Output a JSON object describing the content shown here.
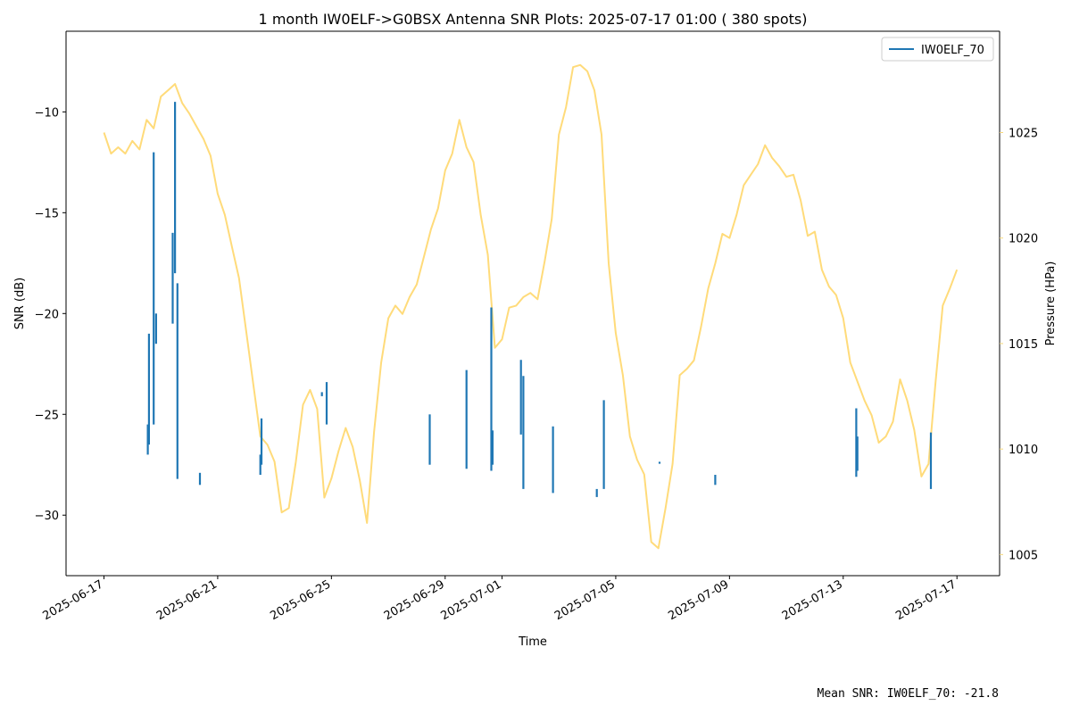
{
  "chart_data": {
    "type": "line",
    "title": "1 month IW0ELF->G0BSX Antenna SNR Plots: 2025-07-17 01:00  ( 380 spots)",
    "xlabel": "Time",
    "ylabel": "SNR (dB)",
    "y2label": "Pressure (HPa)",
    "xlim": [
      "2025-06-15T16:00",
      "2025-07-18T12:00"
    ],
    "ylim": [
      -33,
      -6
    ],
    "y2lim": [
      1004,
      1029.8
    ],
    "x_ticks": [
      "2025-06-17",
      "2025-06-21",
      "2025-06-25",
      "2025-06-29",
      "2025-07-01",
      "2025-07-05",
      "2025-07-09",
      "2025-07-13",
      "2025-07-17"
    ],
    "y_ticks": [
      -10,
      -15,
      -20,
      -25,
      -30
    ],
    "y2_ticks": [
      1025,
      1020,
      1015,
      1010,
      1005
    ],
    "legend": {
      "position": "top-right",
      "entries": [
        "IW0ELF_70"
      ]
    },
    "footer": "Mean SNR: IW0ELF_70: -21.8",
    "colors": {
      "snr": "#1f77b4",
      "pressure": "#ffdb7a",
      "pressure_axis": "#f5d77c"
    },
    "series": [
      {
        "name": "IW0ELF_70",
        "axis": "left",
        "color": "#1f77b4",
        "spots": [
          {
            "x": "2025-06-18T13:00",
            "y_min": -27.0,
            "y_max": -25.5
          },
          {
            "x": "2025-06-18T14:00",
            "y_min": -26.5,
            "y_max": -21.0
          },
          {
            "x": "2025-06-18T18:00",
            "y_min": -25.5,
            "y_max": -12.0
          },
          {
            "x": "2025-06-18T20:00",
            "y_min": -21.5,
            "y_max": -20.0
          },
          {
            "x": "2025-06-19T10:00",
            "y_min": -20.5,
            "y_max": -16.0
          },
          {
            "x": "2025-06-19T12:00",
            "y_min": -18.0,
            "y_max": -9.5
          },
          {
            "x": "2025-06-19T14:00",
            "y_min": -28.2,
            "y_max": -18.5
          },
          {
            "x": "2025-06-20T09:00",
            "y_min": -28.5,
            "y_max": -27.9
          },
          {
            "x": "2025-06-22T12:00",
            "y_min": -28.0,
            "y_max": -27.0
          },
          {
            "x": "2025-06-22T13:00",
            "y_min": -27.5,
            "y_max": -25.2
          },
          {
            "x": "2025-06-24T16:00",
            "y_min": -24.1,
            "y_max": -23.9
          },
          {
            "x": "2025-06-24T20:00",
            "y_min": -25.5,
            "y_max": -23.4
          },
          {
            "x": "2025-06-28T11:00",
            "y_min": -27.5,
            "y_max": -25.0
          },
          {
            "x": "2025-06-29T18:00",
            "y_min": -27.7,
            "y_max": -22.8
          },
          {
            "x": "2025-06-30T15:00",
            "y_min": -27.8,
            "y_max": -19.7
          },
          {
            "x": "2025-06-30T16:00",
            "y_min": -27.5,
            "y_max": -25.8
          },
          {
            "x": "2025-07-01T16:00",
            "y_min": -26.0,
            "y_max": -22.3
          },
          {
            "x": "2025-07-01T18:00",
            "y_min": -28.7,
            "y_max": -23.1
          },
          {
            "x": "2025-07-02T19:00",
            "y_min": -28.9,
            "y_max": -25.6
          },
          {
            "x": "2025-07-04T08:00",
            "y_min": -29.1,
            "y_max": -28.7
          },
          {
            "x": "2025-07-04T14:00",
            "y_min": -28.7,
            "y_max": -24.3
          },
          {
            "x": "2025-07-06T13:00",
            "y_min": -27.45,
            "y_max": -27.35
          },
          {
            "x": "2025-07-08T12:00",
            "y_min": -28.5,
            "y_max": -28.0
          },
          {
            "x": "2025-07-13T11:00",
            "y_min": -28.1,
            "y_max": -24.7
          },
          {
            "x": "2025-07-13T12:00",
            "y_min": -27.8,
            "y_max": -26.1
          },
          {
            "x": "2025-07-16T02:00",
            "y_min": -28.7,
            "y_max": -25.9
          }
        ]
      },
      {
        "name": "Pressure",
        "axis": "right",
        "color": "#ffdb7a",
        "points": [
          [
            "2025-06-17T00:00",
            1025.0
          ],
          [
            "2025-06-17T06:00",
            1024.0
          ],
          [
            "2025-06-17T12:00",
            1024.3
          ],
          [
            "2025-06-17T18:00",
            1024.0
          ],
          [
            "2025-06-18T00:00",
            1024.6
          ],
          [
            "2025-06-18T06:00",
            1024.2
          ],
          [
            "2025-06-18T12:00",
            1025.6
          ],
          [
            "2025-06-18T18:00",
            1025.2
          ],
          [
            "2025-06-19T00:00",
            1026.7
          ],
          [
            "2025-06-19T06:00",
            1027.0
          ],
          [
            "2025-06-19T12:00",
            1027.3
          ],
          [
            "2025-06-19T18:00",
            1026.4
          ],
          [
            "2025-06-20T00:00",
            1025.9
          ],
          [
            "2025-06-20T06:00",
            1025.3
          ],
          [
            "2025-06-20T12:00",
            1024.7
          ],
          [
            "2025-06-20T18:00",
            1023.9
          ],
          [
            "2025-06-21T00:00",
            1022.1
          ],
          [
            "2025-06-21T06:00",
            1021.1
          ],
          [
            "2025-06-21T12:00",
            1019.6
          ],
          [
            "2025-06-21T18:00",
            1018.1
          ],
          [
            "2025-06-22T00:00",
            1015.6
          ],
          [
            "2025-06-22T06:00",
            1013.1
          ],
          [
            "2025-06-22T12:00",
            1010.6
          ],
          [
            "2025-06-22T18:00",
            1010.2
          ],
          [
            "2025-06-23T00:00",
            1009.4
          ],
          [
            "2025-06-23T06:00",
            1007.0
          ],
          [
            "2025-06-23T12:00",
            1007.2
          ],
          [
            "2025-06-23T18:00",
            1009.4
          ],
          [
            "2025-06-24T00:00",
            1012.1
          ],
          [
            "2025-06-24T06:00",
            1012.8
          ],
          [
            "2025-06-24T12:00",
            1011.9
          ],
          [
            "2025-06-24T18:00",
            1007.7
          ],
          [
            "2025-06-25T00:00",
            1008.6
          ],
          [
            "2025-06-25T06:00",
            1009.9
          ],
          [
            "2025-06-25T12:00",
            1011.0
          ],
          [
            "2025-06-25T18:00",
            1010.1
          ],
          [
            "2025-06-26T00:00",
            1008.5
          ],
          [
            "2025-06-26T06:00",
            1006.5
          ],
          [
            "2025-06-26T12:00",
            1010.8
          ],
          [
            "2025-06-26T18:00",
            1014.1
          ],
          [
            "2025-06-27T00:00",
            1016.2
          ],
          [
            "2025-06-27T06:00",
            1016.8
          ],
          [
            "2025-06-27T12:00",
            1016.4
          ],
          [
            "2025-06-27T18:00",
            1017.2
          ],
          [
            "2025-06-28T00:00",
            1017.8
          ],
          [
            "2025-06-28T06:00",
            1019.1
          ],
          [
            "2025-06-28T12:00",
            1020.4
          ],
          [
            "2025-06-28T18:00",
            1021.4
          ],
          [
            "2025-06-29T00:00",
            1023.2
          ],
          [
            "2025-06-29T06:00",
            1024.0
          ],
          [
            "2025-06-29T12:00",
            1025.6
          ],
          [
            "2025-06-29T18:00",
            1024.3
          ],
          [
            "2025-06-30T00:00",
            1023.6
          ],
          [
            "2025-06-30T06:00",
            1021.1
          ],
          [
            "2025-06-30T12:00",
            1019.2
          ],
          [
            "2025-06-30T18:00",
            1014.8
          ],
          [
            "2025-07-01T00:00",
            1015.2
          ],
          [
            "2025-07-01T06:00",
            1016.7
          ],
          [
            "2025-07-01T12:00",
            1016.8
          ],
          [
            "2025-07-01T18:00",
            1017.2
          ],
          [
            "2025-07-02T00:00",
            1017.4
          ],
          [
            "2025-07-02T06:00",
            1017.1
          ],
          [
            "2025-07-02T12:00",
            1018.9
          ],
          [
            "2025-07-02T18:00",
            1020.9
          ],
          [
            "2025-07-03T00:00",
            1024.9
          ],
          [
            "2025-07-03T06:00",
            1026.2
          ],
          [
            "2025-07-03T12:00",
            1028.1
          ],
          [
            "2025-07-03T18:00",
            1028.2
          ],
          [
            "2025-07-04T00:00",
            1027.9
          ],
          [
            "2025-07-04T06:00",
            1027.0
          ],
          [
            "2025-07-04T12:00",
            1024.9
          ],
          [
            "2025-07-04T18:00",
            1018.8
          ],
          [
            "2025-07-05T00:00",
            1015.5
          ],
          [
            "2025-07-05T06:00",
            1013.5
          ],
          [
            "2025-07-05T12:00",
            1010.6
          ],
          [
            "2025-07-05T18:00",
            1009.5
          ],
          [
            "2025-07-06T00:00",
            1008.8
          ],
          [
            "2025-07-06T06:00",
            1005.6
          ],
          [
            "2025-07-06T12:00",
            1005.3
          ],
          [
            "2025-07-06T18:00",
            1007.2
          ],
          [
            "2025-07-07T00:00",
            1009.3
          ],
          [
            "2025-07-07T06:00",
            1013.5
          ],
          [
            "2025-07-07T12:00",
            1013.8
          ],
          [
            "2025-07-07T18:00",
            1014.2
          ],
          [
            "2025-07-08T00:00",
            1015.8
          ],
          [
            "2025-07-08T06:00",
            1017.6
          ],
          [
            "2025-07-08T12:00",
            1018.8
          ],
          [
            "2025-07-08T18:00",
            1020.2
          ],
          [
            "2025-07-09T00:00",
            1020.0
          ],
          [
            "2025-07-09T06:00",
            1021.1
          ],
          [
            "2025-07-09T12:00",
            1022.5
          ],
          [
            "2025-07-09T18:00",
            1023.0
          ],
          [
            "2025-07-10T00:00",
            1023.5
          ],
          [
            "2025-07-10T06:00",
            1024.4
          ],
          [
            "2025-07-10T12:00",
            1023.8
          ],
          [
            "2025-07-10T18:00",
            1023.4
          ],
          [
            "2025-07-11T00:00",
            1022.9
          ],
          [
            "2025-07-11T06:00",
            1023.0
          ],
          [
            "2025-07-11T12:00",
            1021.8
          ],
          [
            "2025-07-11T18:00",
            1020.1
          ],
          [
            "2025-07-12T00:00",
            1020.3
          ],
          [
            "2025-07-12T06:00",
            1018.5
          ],
          [
            "2025-07-12T12:00",
            1017.7
          ],
          [
            "2025-07-12T18:00",
            1017.3
          ],
          [
            "2025-07-13T00:00",
            1016.2
          ],
          [
            "2025-07-13T06:00",
            1014.1
          ],
          [
            "2025-07-13T12:00",
            1013.2
          ],
          [
            "2025-07-13T18:00",
            1012.3
          ],
          [
            "2025-07-14T00:00",
            1011.6
          ],
          [
            "2025-07-14T06:00",
            1010.3
          ],
          [
            "2025-07-14T12:00",
            1010.6
          ],
          [
            "2025-07-14T18:00",
            1011.3
          ],
          [
            "2025-07-15T00:00",
            1013.3
          ],
          [
            "2025-07-15T06:00",
            1012.3
          ],
          [
            "2025-07-15T12:00",
            1010.9
          ],
          [
            "2025-07-15T18:00",
            1008.7
          ],
          [
            "2025-07-16T00:00",
            1009.3
          ],
          [
            "2025-07-16T06:00",
            1013.2
          ],
          [
            "2025-07-16T12:00",
            1016.8
          ],
          [
            "2025-07-16T18:00",
            1017.6
          ],
          [
            "2025-07-17T00:00",
            1018.5
          ]
        ]
      }
    ]
  }
}
